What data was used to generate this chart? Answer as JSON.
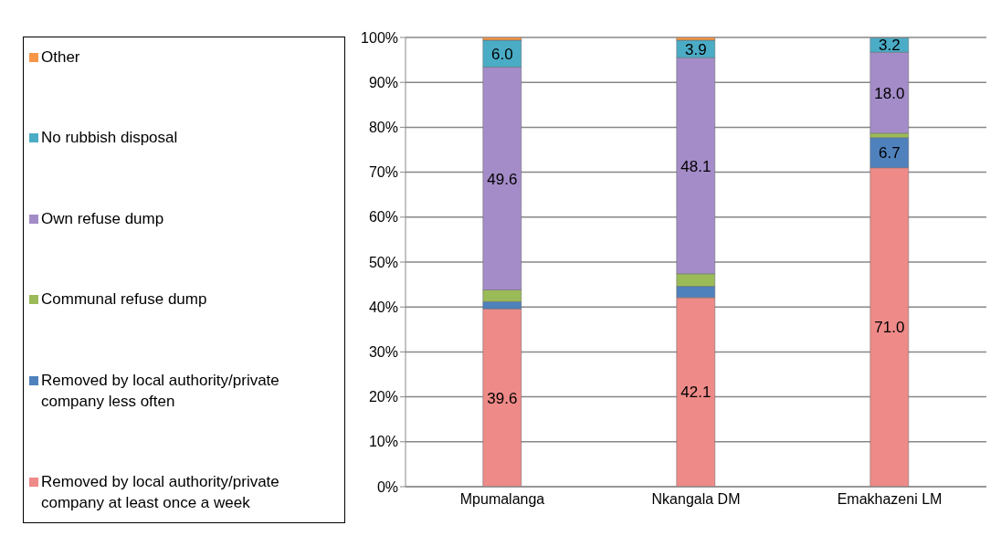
{
  "chart_data": {
    "type": "bar",
    "stacked": true,
    "categories": [
      "Mpumalanga",
      "Nkangala DM",
      "Emakhazeni LM"
    ],
    "series": [
      {
        "name": "Removed by local authority/private company at least once a week",
        "color": "#ee8a88",
        "values": [
          39.6,
          42.1,
          71.0
        ],
        "value_labels": [
          "39.6",
          "42.1",
          "71.0"
        ]
      },
      {
        "name": "Removed by local authority/private company less often",
        "color": "#4f81bd",
        "values": [
          1.6,
          2.5,
          6.7
        ],
        "value_labels": [
          null,
          null,
          "6.7"
        ]
      },
      {
        "name": "Communal refuse dump",
        "color": "#9bbb59",
        "values": [
          2.6,
          2.8,
          1.0
        ]
      },
      {
        "name": "Own refuse dump",
        "color": "#a48cc8",
        "values": [
          49.6,
          48.1,
          18.0
        ],
        "value_labels": [
          "49.6",
          "48.1",
          "18.0"
        ]
      },
      {
        "name": "No rubbish disposal",
        "color": "#4bacc6",
        "values": [
          6.0,
          3.9,
          3.2
        ],
        "value_labels": [
          "6.0",
          "3.9",
          "3.2"
        ]
      },
      {
        "name": "Other",
        "color": "#f79646",
        "values": [
          0.6,
          0.6,
          null
        ]
      }
    ],
    "ylim": [
      0,
      100
    ],
    "yticks": [
      {
        "value": 0,
        "label": "0%"
      },
      {
        "value": 10,
        "label": "10%"
      },
      {
        "value": 20,
        "label": "20%"
      },
      {
        "value": 30,
        "label": "30%"
      },
      {
        "value": 40,
        "label": "40%"
      },
      {
        "value": 50,
        "label": "50%"
      },
      {
        "value": 60,
        "label": "60%"
      },
      {
        "value": 70,
        "label": "70%"
      },
      {
        "value": 80,
        "label": "80%"
      },
      {
        "value": 90,
        "label": "90%"
      },
      {
        "value": 100,
        "label": "100%"
      }
    ],
    "grid": "y",
    "legend": "left"
  }
}
